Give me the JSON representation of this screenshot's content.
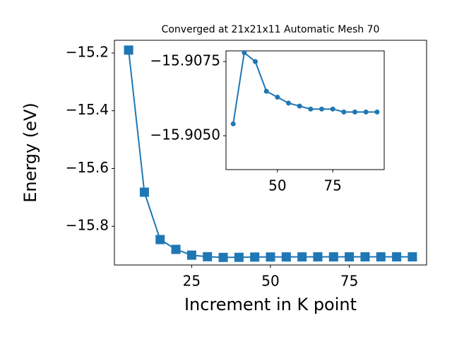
{
  "chart_data": [
    {
      "type": "line",
      "title": "Converged at 21x21x11 Automatic Mesh 70",
      "x_label": "Increment in K point",
      "y_label": "Energy (eV)",
      "x": [
        5,
        10,
        15,
        20,
        25,
        30,
        35,
        40,
        45,
        50,
        55,
        60,
        65,
        70,
        75,
        80,
        85,
        90,
        95
      ],
      "series": [
        {
          "color": "#1f77b4",
          "marker": "square",
          "values": [
            -15.19,
            -15.682,
            -15.846,
            -15.88,
            -15.9,
            -15.9054,
            -15.9078,
            -15.9075,
            -15.9065,
            -15.9063,
            -15.9061,
            -15.906,
            -15.9059,
            -15.9059,
            -15.9059,
            -15.9058,
            -15.9058,
            -15.9058,
            -15.9058
          ]
        }
      ],
      "xlim": [
        0.5,
        99.5
      ],
      "xticks": [
        25,
        50,
        75
      ],
      "ylim": [
        -15.934,
        -15.156
      ],
      "yticks": [
        {
          "value": -15.2,
          "label": "−15.2"
        },
        {
          "value": -15.4,
          "label": "−15.4"
        },
        {
          "value": -15.6,
          "label": "−15.6"
        },
        {
          "value": -15.8,
          "label": "−15.8"
        }
      ]
    },
    {
      "type": "line",
      "x": [
        30,
        35,
        40,
        45,
        50,
        55,
        60,
        65,
        70,
        75,
        80,
        85,
        90,
        95
      ],
      "series": [
        {
          "color": "#1f77b4",
          "marker": "circle",
          "values": [
            -15.9054,
            -15.9078,
            -15.9075,
            -15.9065,
            -15.9063,
            -15.9061,
            -15.906,
            -15.9059,
            -15.9059,
            -15.9059,
            -15.9058,
            -15.9058,
            -15.9058,
            -15.9058
          ]
        }
      ],
      "xlim": [
        26.75,
        98.25
      ],
      "xticks": [
        50,
        75
      ],
      "ylim": [
        -15.90386,
        -15.90786
      ],
      "yticks": [
        {
          "value": -15.9075,
          "label": "−15.9075"
        },
        {
          "value": -15.905,
          "label": "−15.9050"
        }
      ]
    }
  ]
}
